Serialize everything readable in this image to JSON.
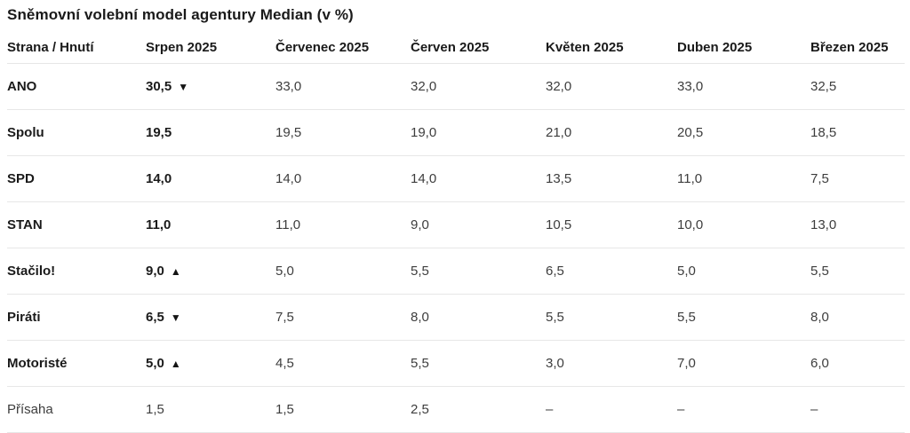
{
  "title": "Sněmovní volební model agentury Median (v %)",
  "table": {
    "columns": [
      "Strana / Hnutí",
      "Srpen 2025",
      "Červenec 2025",
      "Červen 2025",
      "Květen 2025",
      "Duben 2025",
      "Březen 2025"
    ],
    "rows": [
      {
        "party": "ANO",
        "cells": [
          "30,5",
          "33,0",
          "32,0",
          "32,0",
          "33,0",
          "32,5"
        ],
        "trend": "▼"
      },
      {
        "party": "Spolu",
        "cells": [
          "19,5",
          "19,5",
          "19,0",
          "21,0",
          "20,5",
          "18,5"
        ],
        "trend": ""
      },
      {
        "party": "SPD",
        "cells": [
          "14,0",
          "14,0",
          "14,0",
          "13,5",
          "11,0",
          "7,5"
        ],
        "trend": ""
      },
      {
        "party": "STAN",
        "cells": [
          "11,0",
          "11,0",
          "9,0",
          "10,5",
          "10,0",
          "13,0"
        ],
        "trend": ""
      },
      {
        "party": "Stačilo!",
        "cells": [
          "9,0",
          "5,0",
          "5,5",
          "6,5",
          "5,0",
          "5,5"
        ],
        "trend": "▲"
      },
      {
        "party": "Piráti",
        "cells": [
          "6,5",
          "7,5",
          "8,0",
          "5,5",
          "5,5",
          "8,0"
        ],
        "trend": "▼"
      },
      {
        "party": "Motoristé",
        "cells": [
          "5,0",
          "4,5",
          "5,5",
          "3,0",
          "7,0",
          "6,0"
        ],
        "trend": "▲"
      },
      {
        "party": "Přísaha",
        "cells": [
          "1,5",
          "1,5",
          "2,5",
          "–",
          "–",
          "–"
        ],
        "trend": ""
      }
    ]
  },
  "chart_data": {
    "type": "table",
    "title": "Sněmovní volební model agentury Median (v %)",
    "categories": [
      "Srpen 2025",
      "Červenec 2025",
      "Červen 2025",
      "Květen 2025",
      "Duben 2025",
      "Březen 2025"
    ],
    "series": [
      {
        "name": "ANO",
        "values": [
          30.5,
          33.0,
          32.0,
          32.0,
          33.0,
          32.5
        ],
        "latest_trend": "down"
      },
      {
        "name": "Spolu",
        "values": [
          19.5,
          19.5,
          19.0,
          21.0,
          20.5,
          18.5
        ],
        "latest_trend": null
      },
      {
        "name": "SPD",
        "values": [
          14.0,
          14.0,
          14.0,
          13.5,
          11.0,
          7.5
        ],
        "latest_trend": null
      },
      {
        "name": "STAN",
        "values": [
          11.0,
          11.0,
          9.0,
          10.5,
          10.0,
          13.0
        ],
        "latest_trend": null
      },
      {
        "name": "Stačilo!",
        "values": [
          9.0,
          5.0,
          5.5,
          6.5,
          5.0,
          5.5
        ],
        "latest_trend": "up"
      },
      {
        "name": "Piráti",
        "values": [
          6.5,
          7.5,
          8.0,
          5.5,
          5.5,
          8.0
        ],
        "latest_trend": "down"
      },
      {
        "name": "Motoristé",
        "values": [
          5.0,
          4.5,
          5.5,
          3.0,
          7.0,
          6.0
        ],
        "latest_trend": "up"
      },
      {
        "name": "Přísaha",
        "values": [
          1.5,
          1.5,
          2.5,
          null,
          null,
          null
        ],
        "latest_trend": null
      }
    ]
  },
  "icons": {
    "trend_up": "▲",
    "trend_down": "▼"
  },
  "colors": {
    "text_primary": "#1a1a1a",
    "text_secondary": "#3d3d3d",
    "divider": "#e7e7e7",
    "background": "#ffffff"
  }
}
